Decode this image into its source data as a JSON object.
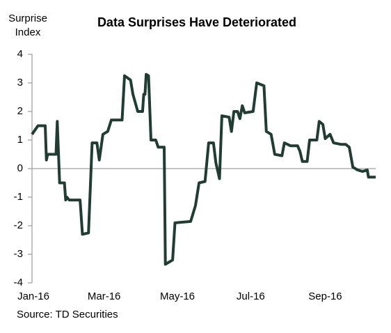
{
  "chart_data": {
    "type": "line",
    "title": "Data Surprises Have Deteriorated",
    "ylabel": [
      "Surprise",
      "Index"
    ],
    "source": "Source: TD Securities",
    "xlim": [
      1,
      287
    ],
    "xticks": [
      {
        "value": 1,
        "label": "Jan-16"
      },
      {
        "value": 61,
        "label": "Mar-16"
      },
      {
        "value": 122,
        "label": "May-16"
      },
      {
        "value": 183,
        "label": "Jul-16"
      },
      {
        "value": 245,
        "label": "Sep-16"
      }
    ],
    "ylim": [
      -4,
      4
    ],
    "yticks": [
      -4,
      -3,
      -2,
      -1,
      0,
      1,
      2,
      3,
      4
    ],
    "series": [
      {
        "name": "Surprise Index",
        "color": "#1f3d33",
        "x": [
          1,
          6,
          12,
          13,
          14,
          21,
          22,
          24,
          28,
          29,
          30,
          32,
          41,
          43,
          48,
          50,
          51,
          55,
          57,
          60,
          64,
          67,
          76,
          78,
          83,
          85,
          89,
          93,
          94,
          95,
          96,
          98,
          100,
          104,
          106,
          111,
          112,
          118,
          120,
          133,
          137,
          140,
          145,
          148,
          152,
          154,
          157,
          159,
          165,
          167,
          169,
          172,
          174,
          176,
          178,
          185,
          188,
          194,
          196,
          200,
          203,
          209,
          211,
          216,
          222,
          224,
          226,
          230,
          232,
          238,
          240,
          243,
          245,
          249,
          252,
          258,
          262,
          265,
          268,
          272,
          276,
          280,
          281,
          287
        ],
        "values": [
          1.2,
          1.5,
          1.5,
          0.3,
          0.5,
          0.5,
          1.65,
          -0.5,
          -0.5,
          -1.1,
          -1.0,
          -1.1,
          -1.1,
          -2.3,
          -2.25,
          -0.2,
          0.9,
          0.9,
          0.3,
          1.2,
          1.3,
          1.7,
          1.7,
          3.25,
          3.1,
          2.6,
          2.0,
          2.0,
          2.6,
          2.6,
          3.3,
          3.25,
          1.0,
          1.0,
          0.75,
          0.75,
          -3.35,
          -3.2,
          -1.9,
          -1.85,
          -1.3,
          -0.5,
          -0.45,
          0.9,
          0.9,
          0.2,
          -0.35,
          1.85,
          1.8,
          1.3,
          2.0,
          2.0,
          1.75,
          2.2,
          1.95,
          2.0,
          3.0,
          2.9,
          1.3,
          1.2,
          0.5,
          0.45,
          0.9,
          0.8,
          0.8,
          0.6,
          0.25,
          0.25,
          1.0,
          1.0,
          1.65,
          1.55,
          1.05,
          1.2,
          0.9,
          0.85,
          0.85,
          0.75,
          0.05,
          -0.05,
          -0.1,
          -0.05,
          -0.3,
          -0.3
        ]
      }
    ]
  }
}
